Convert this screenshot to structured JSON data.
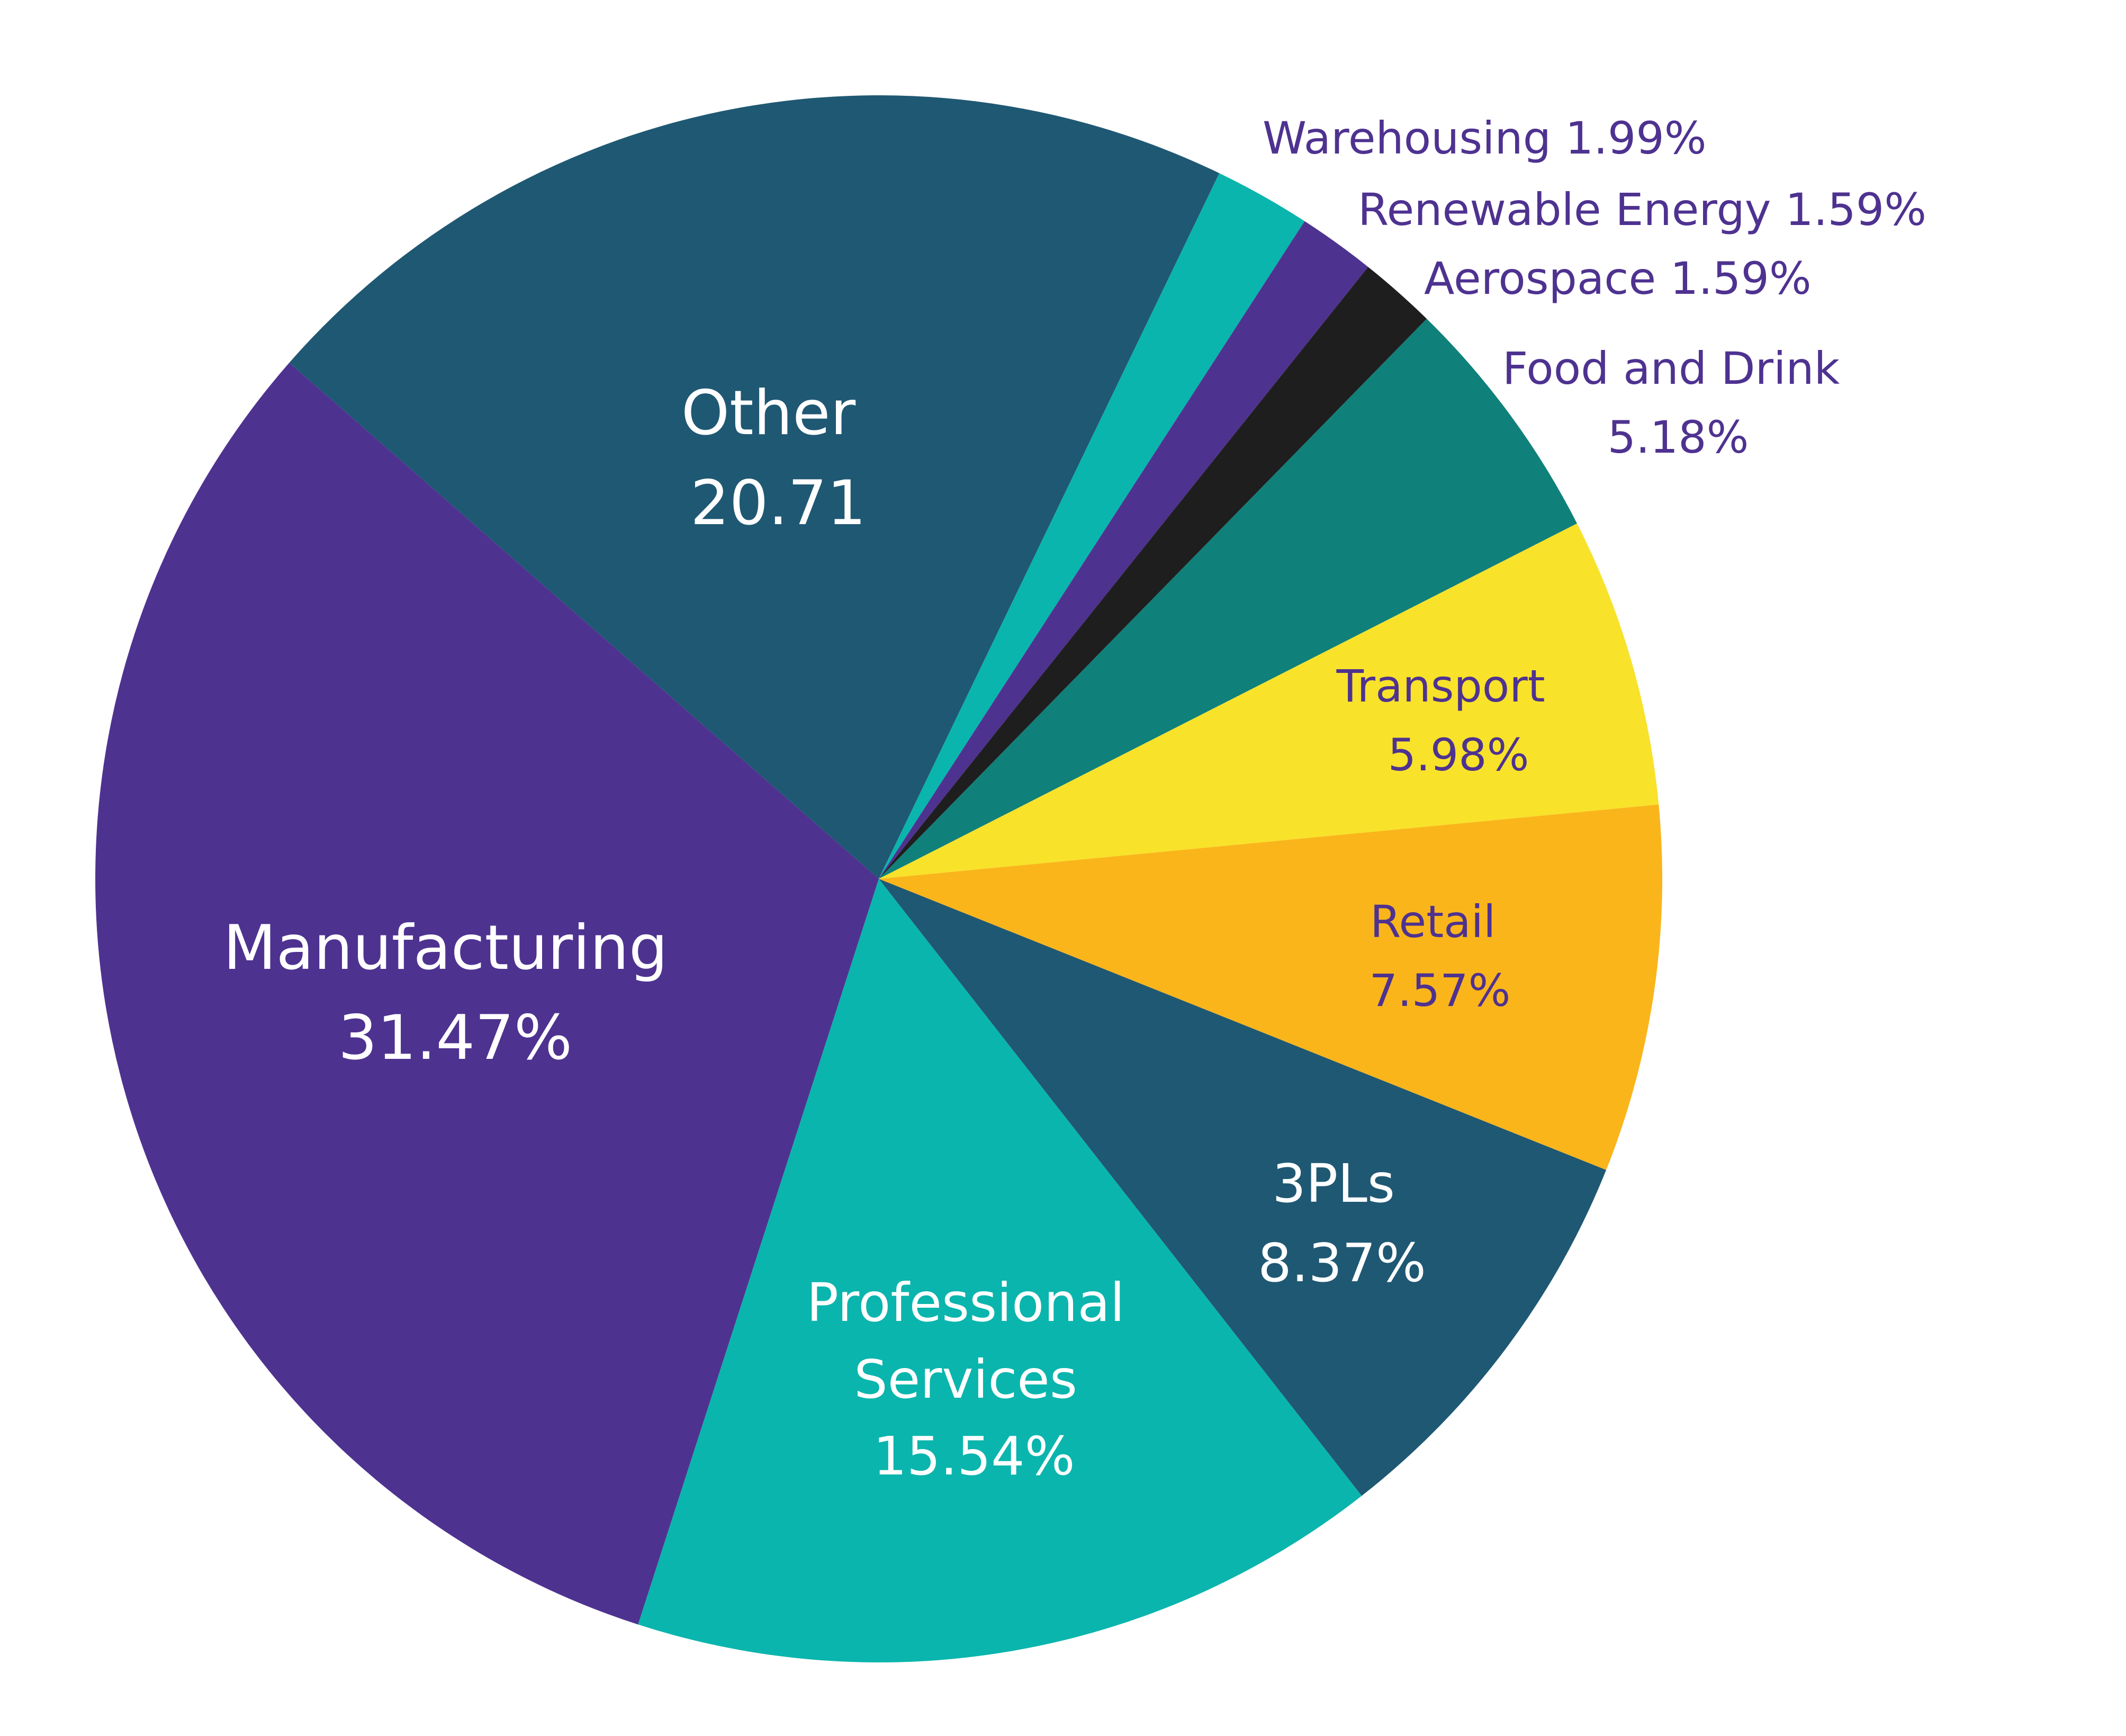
{
  "chart_data": {
    "type": "pie",
    "title": "",
    "start_angle_deg": 51.2,
    "direction": "counterclockwise",
    "slices": [
      {
        "label": "Manufacturing",
        "value": 31.47,
        "value_text": "31.47%",
        "color": "#4e3290",
        "text_color": "#ffffff",
        "label_lines": [
          "Manufacturing",
          "31.47%"
        ],
        "label_placement": "inside"
      },
      {
        "label": "Other",
        "value": 20.71,
        "value_text": "20.71",
        "color": "#1f5873",
        "text_color": "#ffffff",
        "label_lines": [
          "Other",
          "20.71"
        ],
        "label_placement": "inside"
      },
      {
        "label": "Warehousing",
        "value": 1.99,
        "value_text": "1.99%",
        "color": "#0ab5ad",
        "text_color": "#4e3290",
        "label_lines": [
          "Warehousing 1.99%"
        ],
        "label_placement": "outside"
      },
      {
        "label": "Renewable Energy",
        "value": 1.59,
        "value_text": "1.59%",
        "color": "#4e3290",
        "text_color": "#4e3290",
        "label_lines": [
          "Renewable Energy 1.59%"
        ],
        "label_placement": "outside"
      },
      {
        "label": "Aerospace",
        "value": 1.59,
        "value_text": "1.59%",
        "color": "#1e1e1e",
        "text_color": "#4e3290",
        "label_lines": [
          "Aerospace 1.59%"
        ],
        "label_placement": "outside"
      },
      {
        "label": "Food and Drink",
        "value": 5.18,
        "value_text": "5.18%",
        "color": "#10807a",
        "text_color": "#4e3290",
        "label_lines": [
          "Food and Drink",
          "5.18%"
        ],
        "label_placement": "outside"
      },
      {
        "label": "Transport",
        "value": 5.98,
        "value_text": "5.98%",
        "color": "#f8e22a",
        "text_color": "#4e3290",
        "label_lines": [
          "Transport",
          "5.98%"
        ],
        "label_placement": "inside"
      },
      {
        "label": "Retail",
        "value": 7.57,
        "value_text": "7.57%",
        "color": "#fab51b",
        "text_color": "#4e3290",
        "label_lines": [
          "Retail",
          "7.57%"
        ],
        "label_placement": "inside"
      },
      {
        "label": "3PLs",
        "value": 8.37,
        "value_text": "8.37%",
        "color": "#1f5873",
        "text_color": "#ffffff",
        "label_lines": [
          "3PLs",
          "8.37%"
        ],
        "label_placement": "inside"
      },
      {
        "label": "Professional Services",
        "value": 15.54,
        "value_text": "15.54%",
        "color": "#0ab5ad",
        "text_color": "#ffffff",
        "label_lines": [
          "Professional",
          "Services",
          "15.54%"
        ],
        "label_placement": "inside"
      }
    ],
    "legend": "none"
  }
}
